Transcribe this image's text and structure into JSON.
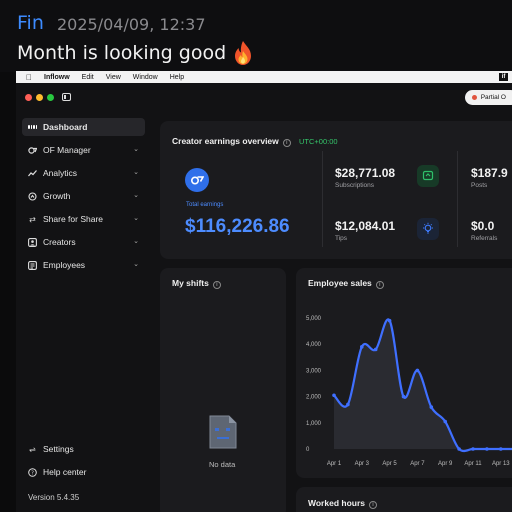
{
  "chat": {
    "sender": "Fin",
    "timestamp": "2025/04/09, 12:37",
    "message": "Month is looking good",
    "emoji": "fire-emoji"
  },
  "menubar": {
    "app_name": "Infloww",
    "items": [
      "Edit",
      "View",
      "Window",
      "Help"
    ]
  },
  "window": {
    "traffic_colors": [
      "#ff5f57",
      "#febc2e",
      "#28c840"
    ],
    "status_pill": "Partial O"
  },
  "sidebar": {
    "items": [
      {
        "label": "Dashboard",
        "icon": "grid-icon",
        "active": true,
        "chevron": false
      },
      {
        "label": "OF Manager",
        "icon": "of-icon",
        "active": false,
        "chevron": true
      },
      {
        "label": "Analytics",
        "icon": "analytics-icon",
        "active": false,
        "chevron": true
      },
      {
        "label": "Growth",
        "icon": "growth-icon",
        "active": false,
        "chevron": true
      },
      {
        "label": "Share for Share",
        "icon": "swap-icon",
        "active": false,
        "chevron": true
      },
      {
        "label": "Creators",
        "icon": "creators-icon",
        "active": false,
        "chevron": true
      },
      {
        "label": "Employees",
        "icon": "employees-icon",
        "active": false,
        "chevron": true
      }
    ],
    "settings": "Settings",
    "help": "Help center",
    "version": "Version 5.4.35"
  },
  "overview": {
    "title": "Creator earnings overview",
    "timezone": "UTC+00:00",
    "total_label": "Total earnings",
    "total_value": "$116,226.86",
    "stats": [
      {
        "value": "$28,771.08",
        "label": "Subscriptions",
        "icon": "message-icon",
        "accent": "#2fbf6a"
      },
      {
        "value": "$12,084.01",
        "label": "Tips",
        "icon": "bulb-icon",
        "accent": "#3f7cff"
      },
      {
        "value": "$187.9",
        "label": "Posts"
      },
      {
        "value": "$0.0",
        "label": "Referrals"
      }
    ]
  },
  "shifts": {
    "title": "My shifts",
    "empty": "No data"
  },
  "sales": {
    "title": "Employee sales"
  },
  "worked": {
    "title": "Worked hours"
  },
  "chart_data": {
    "type": "line",
    "title": "Employee sales",
    "x": [
      "Apr 1",
      "Apr 2",
      "Apr 3",
      "Apr 4",
      "Apr 5",
      "Apr 6",
      "Apr 7",
      "Apr 8",
      "Apr 9",
      "Apr 10",
      "Apr 11",
      "Apr 12",
      "Apr 13",
      "Apr 14"
    ],
    "x_tick_labels": [
      "Apr 1",
      "Apr 3",
      "Apr 5",
      "Apr 7",
      "Apr 9",
      "Apr 11",
      "Apr 13"
    ],
    "y_ticks": [
      "0",
      "1,000",
      "2,000",
      "3,000",
      "4,000",
      "5,000"
    ],
    "ylim": [
      0,
      5000
    ],
    "series": [
      {
        "values": [
          2050,
          1700,
          3900,
          3800,
          4900,
          2000,
          3000,
          1600,
          1050,
          0,
          0,
          0,
          0,
          0
        ],
        "color": "#3f6fff"
      }
    ],
    "grid": false,
    "area_fill": true
  }
}
